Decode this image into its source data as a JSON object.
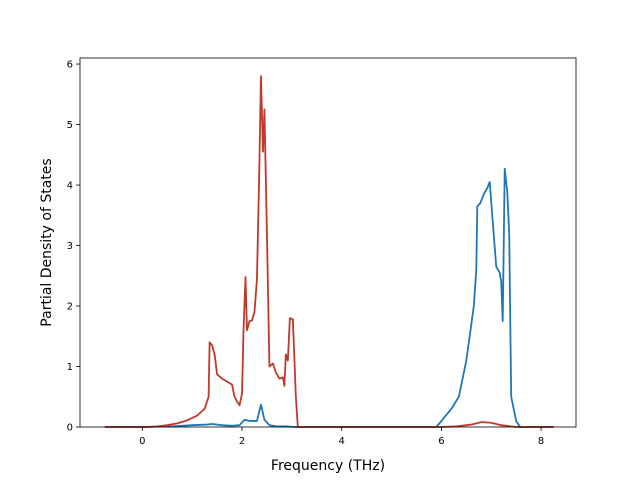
{
  "chart_data": {
    "type": "line",
    "title": "",
    "xlabel": "Frequency (THz)",
    "ylabel": "Partial Density of States",
    "xlim": [
      -1.25,
      8.7
    ],
    "ylim": [
      0,
      6.1
    ],
    "xticks": [
      0,
      2,
      4,
      6,
      8
    ],
    "yticks": [
      0,
      1,
      2,
      3,
      4,
      5,
      6
    ],
    "grid": false,
    "legend": "none",
    "series": [
      {
        "color": "#1f77b4",
        "points": [
          [
            -0.75,
            0.0
          ],
          [
            0.0,
            0.0
          ],
          [
            0.6,
            0.01
          ],
          [
            1.0,
            0.03
          ],
          [
            1.3,
            0.04
          ],
          [
            1.4,
            0.05
          ],
          [
            1.6,
            0.03
          ],
          [
            1.8,
            0.02
          ],
          [
            1.95,
            0.03
          ],
          [
            2.05,
            0.12
          ],
          [
            2.15,
            0.1
          ],
          [
            2.3,
            0.1
          ],
          [
            2.38,
            0.37
          ],
          [
            2.45,
            0.12
          ],
          [
            2.55,
            0.03
          ],
          [
            2.7,
            0.01
          ],
          [
            2.9,
            0.01
          ],
          [
            3.05,
            0.0
          ],
          [
            5.9,
            0.0
          ],
          [
            6.05,
            0.15
          ],
          [
            6.2,
            0.3
          ],
          [
            6.35,
            0.5
          ],
          [
            6.5,
            1.1
          ],
          [
            6.6,
            1.7
          ],
          [
            6.65,
            2.0
          ],
          [
            6.7,
            2.6
          ],
          [
            6.72,
            3.65
          ],
          [
            6.78,
            3.7
          ],
          [
            6.85,
            3.85
          ],
          [
            6.92,
            3.95
          ],
          [
            6.97,
            4.05
          ],
          [
            7.02,
            3.5
          ],
          [
            7.1,
            2.65
          ],
          [
            7.17,
            2.55
          ],
          [
            7.2,
            2.4
          ],
          [
            7.23,
            1.75
          ],
          [
            7.27,
            4.27
          ],
          [
            7.32,
            3.9
          ],
          [
            7.36,
            3.2
          ],
          [
            7.4,
            0.5
          ],
          [
            7.5,
            0.1
          ],
          [
            7.58,
            0.0
          ],
          [
            8.25,
            0.0
          ]
        ]
      },
      {
        "color": "#c0392b",
        "points": [
          [
            -0.75,
            0.0
          ],
          [
            0.1,
            0.0
          ],
          [
            0.3,
            0.01
          ],
          [
            0.5,
            0.03
          ],
          [
            0.7,
            0.06
          ],
          [
            0.9,
            0.11
          ],
          [
            1.1,
            0.19
          ],
          [
            1.25,
            0.3
          ],
          [
            1.33,
            0.5
          ],
          [
            1.35,
            1.4
          ],
          [
            1.4,
            1.35
          ],
          [
            1.45,
            1.2
          ],
          [
            1.5,
            0.87
          ],
          [
            1.6,
            0.8
          ],
          [
            1.7,
            0.75
          ],
          [
            1.8,
            0.7
          ],
          [
            1.85,
            0.5
          ],
          [
            1.9,
            0.42
          ],
          [
            1.95,
            0.36
          ],
          [
            2.0,
            0.55
          ],
          [
            2.03,
            1.6
          ],
          [
            2.07,
            2.48
          ],
          [
            2.1,
            1.6
          ],
          [
            2.15,
            1.75
          ],
          [
            2.2,
            1.76
          ],
          [
            2.25,
            1.9
          ],
          [
            2.3,
            2.45
          ],
          [
            2.35,
            4.4
          ],
          [
            2.38,
            5.8
          ],
          [
            2.42,
            4.55
          ],
          [
            2.45,
            5.25
          ],
          [
            2.5,
            3.2
          ],
          [
            2.55,
            1.0
          ],
          [
            2.62,
            1.05
          ],
          [
            2.68,
            0.9
          ],
          [
            2.75,
            0.8
          ],
          [
            2.82,
            0.82
          ],
          [
            2.85,
            0.68
          ],
          [
            2.88,
            1.2
          ],
          [
            2.92,
            1.1
          ],
          [
            2.96,
            1.8
          ],
          [
            3.02,
            1.78
          ],
          [
            3.08,
            0.5
          ],
          [
            3.12,
            0.0
          ],
          [
            6.0,
            0.0
          ],
          [
            6.3,
            0.01
          ],
          [
            6.6,
            0.04
          ],
          [
            6.8,
            0.08
          ],
          [
            7.0,
            0.07
          ],
          [
            7.2,
            0.03
          ],
          [
            7.5,
            0.0
          ],
          [
            8.25,
            0.0
          ]
        ]
      }
    ]
  }
}
